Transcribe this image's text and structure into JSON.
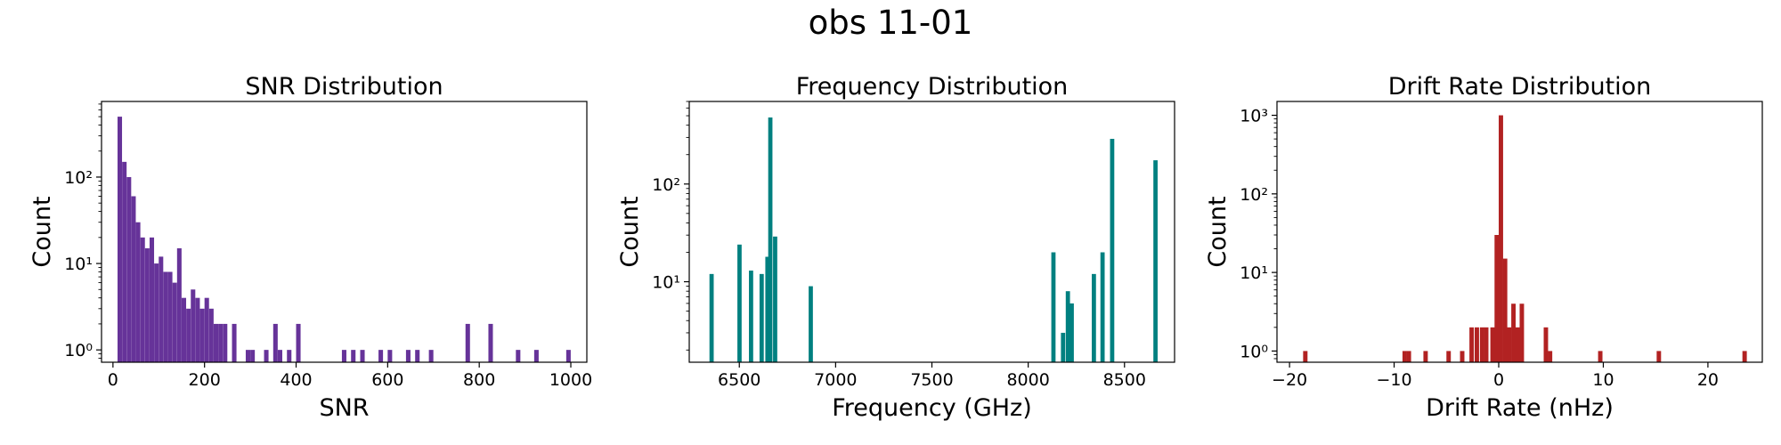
{
  "figure": {
    "suptitle": "obs 11-01"
  },
  "chart_data": [
    {
      "type": "bar",
      "title": "SNR Distribution",
      "xlabel": "SNR",
      "ylabel": "Count",
      "xscale": "linear",
      "yscale": "log",
      "xlim": [
        -25,
        1035
      ],
      "ylim": [
        0.72,
        750
      ],
      "xticks": [
        0,
        200,
        400,
        600,
        800,
        1000
      ],
      "xtick_labels": [
        "0",
        "200",
        "400",
        "600",
        "800",
        "1000"
      ],
      "yticks": [
        1,
        10,
        100
      ],
      "ytick_labels": [
        "10⁰",
        "10¹",
        "10²"
      ],
      "color": "#663399",
      "bin_width": 9.8,
      "bins": [
        {
          "x": 10,
          "count": 500
        },
        {
          "x": 20,
          "count": 150
        },
        {
          "x": 30,
          "count": 100
        },
        {
          "x": 40,
          "count": 60
        },
        {
          "x": 50,
          "count": 30
        },
        {
          "x": 60,
          "count": 20
        },
        {
          "x": 70,
          "count": 15
        },
        {
          "x": 80,
          "count": 20
        },
        {
          "x": 90,
          "count": 10
        },
        {
          "x": 100,
          "count": 12
        },
        {
          "x": 110,
          "count": 8
        },
        {
          "x": 120,
          "count": 8
        },
        {
          "x": 130,
          "count": 6
        },
        {
          "x": 140,
          "count": 15
        },
        {
          "x": 150,
          "count": 4
        },
        {
          "x": 160,
          "count": 3
        },
        {
          "x": 170,
          "count": 5
        },
        {
          "x": 180,
          "count": 4
        },
        {
          "x": 190,
          "count": 3
        },
        {
          "x": 200,
          "count": 4
        },
        {
          "x": 210,
          "count": 3
        },
        {
          "x": 220,
          "count": 2
        },
        {
          "x": 230,
          "count": 2
        },
        {
          "x": 240,
          "count": 2
        },
        {
          "x": 260,
          "count": 2
        },
        {
          "x": 290,
          "count": 1
        },
        {
          "x": 300,
          "count": 1
        },
        {
          "x": 330,
          "count": 1
        },
        {
          "x": 350,
          "count": 2
        },
        {
          "x": 360,
          "count": 1
        },
        {
          "x": 380,
          "count": 1
        },
        {
          "x": 400,
          "count": 2
        },
        {
          "x": 500,
          "count": 1
        },
        {
          "x": 520,
          "count": 1
        },
        {
          "x": 540,
          "count": 1
        },
        {
          "x": 580,
          "count": 1
        },
        {
          "x": 600,
          "count": 1
        },
        {
          "x": 640,
          "count": 1
        },
        {
          "x": 660,
          "count": 1
        },
        {
          "x": 690,
          "count": 1
        },
        {
          "x": 770,
          "count": 2
        },
        {
          "x": 820,
          "count": 2
        },
        {
          "x": 880,
          "count": 1
        },
        {
          "x": 920,
          "count": 1
        },
        {
          "x": 990,
          "count": 1
        }
      ]
    },
    {
      "type": "bar",
      "title": "Frequency Distribution",
      "xlabel": "Frequency (GHz)",
      "ylabel": "Count",
      "xscale": "linear",
      "yscale": "log",
      "xlim": [
        6240,
        8760
      ],
      "ylim": [
        1.5,
        700
      ],
      "xticks": [
        6500,
        7000,
        7500,
        8000,
        8500
      ],
      "xtick_labels": [
        "6500",
        "7000",
        "7500",
        "8000",
        "8500"
      ],
      "yticks": [
        10,
        100
      ],
      "ytick_labels": [
        "10¹",
        "10²"
      ],
      "color": "#008080",
      "bin_width": 22,
      "bins": [
        {
          "x": 6345,
          "count": 12
        },
        {
          "x": 6490,
          "count": 24
        },
        {
          "x": 6550,
          "count": 13
        },
        {
          "x": 6605,
          "count": 12
        },
        {
          "x": 6635,
          "count": 18
        },
        {
          "x": 6650,
          "count": 480
        },
        {
          "x": 6675,
          "count": 29
        },
        {
          "x": 6860,
          "count": 9
        },
        {
          "x": 8120,
          "count": 20
        },
        {
          "x": 8170,
          "count": 3
        },
        {
          "x": 8195,
          "count": 8
        },
        {
          "x": 8215,
          "count": 6
        },
        {
          "x": 8330,
          "count": 12
        },
        {
          "x": 8375,
          "count": 20
        },
        {
          "x": 8425,
          "count": 290
        },
        {
          "x": 8650,
          "count": 175
        }
      ]
    },
    {
      "type": "bar",
      "title": "Drift Rate Distribution",
      "xlabel": "Drift Rate (nHz)",
      "ylabel": "Count",
      "xscale": "linear",
      "yscale": "log",
      "xlim": [
        -21.2,
        25.2
      ],
      "ylim": [
        0.72,
        1500
      ],
      "xticks": [
        -20,
        -10,
        0,
        10,
        20
      ],
      "xtick_labels": [
        "−20",
        "−10",
        "0",
        "10",
        "20"
      ],
      "yticks": [
        1,
        10,
        100,
        1000
      ],
      "ytick_labels": [
        "10⁰",
        "10¹",
        "10²",
        "10³"
      ],
      "color": "#b22222",
      "bin_width": 0.42,
      "bins": [
        {
          "x": -18.7,
          "count": 1
        },
        {
          "x": -9.2,
          "count": 1
        },
        {
          "x": -8.8,
          "count": 1
        },
        {
          "x": -7.2,
          "count": 1
        },
        {
          "x": -5.0,
          "count": 1
        },
        {
          "x": -3.7,
          "count": 1
        },
        {
          "x": -2.8,
          "count": 2
        },
        {
          "x": -2.3,
          "count": 2
        },
        {
          "x": -1.8,
          "count": 2
        },
        {
          "x": -1.4,
          "count": 2
        },
        {
          "x": -0.8,
          "count": 2
        },
        {
          "x": -0.4,
          "count": 30
        },
        {
          "x": 0.0,
          "count": 1000
        },
        {
          "x": 0.4,
          "count": 15
        },
        {
          "x": 0.8,
          "count": 2
        },
        {
          "x": 1.2,
          "count": 4
        },
        {
          "x": 1.6,
          "count": 2
        },
        {
          "x": 2.0,
          "count": 4
        },
        {
          "x": 4.3,
          "count": 2
        },
        {
          "x": 4.7,
          "count": 1
        },
        {
          "x": 9.5,
          "count": 1
        },
        {
          "x": 15.1,
          "count": 1
        },
        {
          "x": 23.3,
          "count": 1
        }
      ]
    }
  ]
}
